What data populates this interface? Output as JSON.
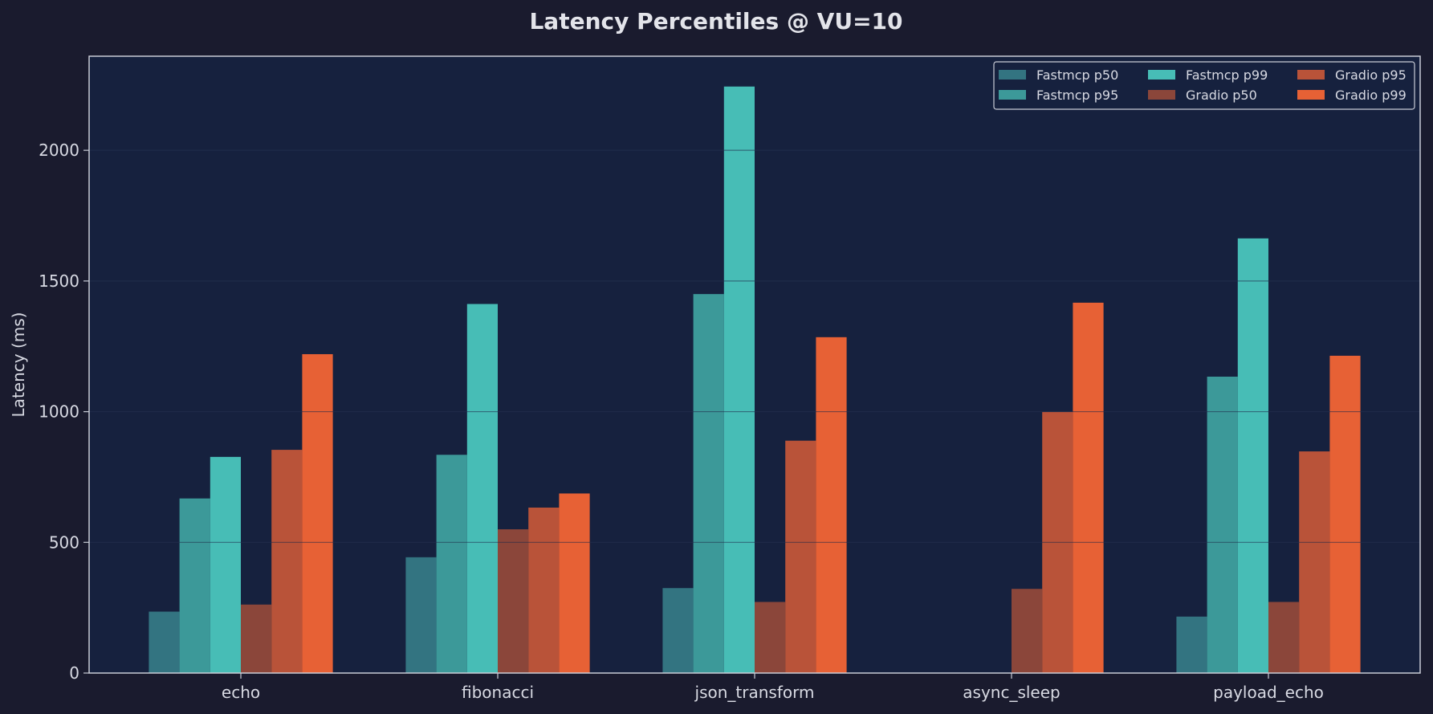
{
  "chart_data": {
    "type": "bar",
    "title": "Latency Percentiles @ VU=10",
    "xlabel": "",
    "ylabel": "Latency (ms)",
    "ylim": [
      0,
      2360
    ],
    "yticks": [
      0,
      500,
      1000,
      1500,
      2000
    ],
    "grid": true,
    "legend_position": "top-right",
    "categories": [
      "echo",
      "fibonacci",
      "json_transform",
      "async_sleep",
      "payload_echo"
    ],
    "series": [
      {
        "name": "Fastmcp p50",
        "color": "#337481",
        "values": [
          235,
          443,
          325,
          null,
          216
        ]
      },
      {
        "name": "Fastmcp p95",
        "color": "#3c9999",
        "values": [
          668,
          835,
          1450,
          null,
          1134
        ]
      },
      {
        "name": "Fastmcp p99",
        "color": "#47bdb6",
        "values": [
          827,
          1412,
          2244,
          null,
          1663
        ]
      },
      {
        "name": "Gradio p50",
        "color": "#8b463a",
        "values": [
          262,
          550,
          272,
          322,
          272
        ]
      },
      {
        "name": "Gradio p95",
        "color": "#b95339",
        "values": [
          854,
          633,
          889,
          999,
          848
        ]
      },
      {
        "name": "Gradio p99",
        "color": "#e76135",
        "values": [
          1220,
          687,
          1285,
          1417,
          1214
        ]
      }
    ]
  },
  "colors": {
    "page_background": "#1a1b2e",
    "plot_background": "#16213e",
    "grid": "#1f2a48",
    "axis": "#c9ccd6",
    "text": "#d8dae3"
  }
}
